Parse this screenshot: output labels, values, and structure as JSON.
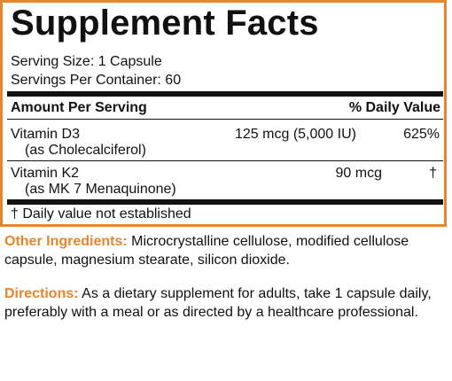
{
  "panel": {
    "title": "Supplement Facts",
    "serving_size": "Serving Size: 1 Capsule",
    "servings_per_container": "Servings Per Container: 60",
    "header": {
      "amount": "Amount Per Serving",
      "dv": "% Daily Value"
    },
    "rows": [
      {
        "name": "Vitamin D3",
        "sub": "(as Cholecalciferol)",
        "amount": "125 mcg (5,000 IU)",
        "dv": "625%"
      },
      {
        "name": "Vitamin K2",
        "sub": "(as MK 7 Menaquinone)",
        "amount": "90 mcg",
        "dv": "†"
      }
    ],
    "footnote": "† Daily value not established"
  },
  "other_ingredients": {
    "label": "Other Ingredients:",
    "text": "Microcrystalline cellulose, modified cellulose capsule, magnesium stearate, silicon dioxide."
  },
  "directions": {
    "label": "Directions:",
    "text": "As a dietary supplement for adults, take 1 capsule daily, preferably with a meal or as directed by a healthcare professional."
  },
  "colors": {
    "accent": "#e8852a",
    "text": "#111111"
  }
}
